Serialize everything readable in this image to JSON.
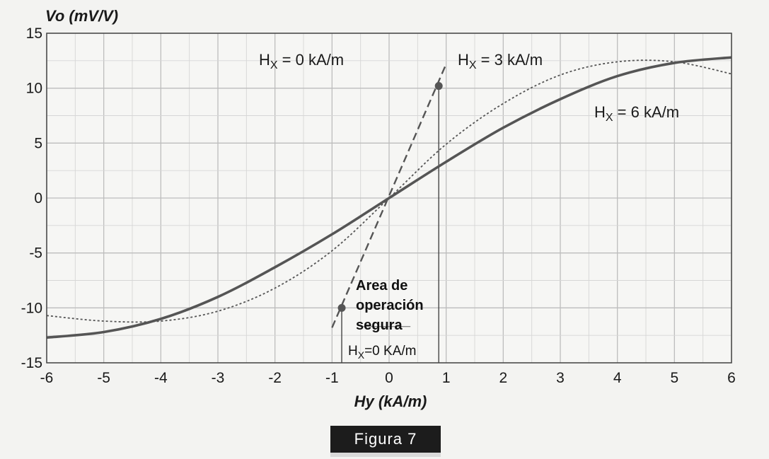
{
  "chart_data": {
    "type": "line",
    "xlabel": "Hy (kA/m)",
    "ylabel": "Vo (mV/V)",
    "xlim": [
      -6,
      6
    ],
    "ylim": [
      -15,
      15
    ],
    "x_ticks": [
      "-6",
      "-5",
      "-4",
      "-3",
      "-2",
      "-1",
      "0",
      "1",
      "2",
      "3",
      "4",
      "5",
      "6"
    ],
    "y_ticks": [
      "15",
      "10",
      "5",
      "0",
      "-5",
      "-10",
      "-15"
    ],
    "grid": true,
    "series": [
      {
        "label": "Hx = 6 kA/m",
        "style": "solid",
        "x": [
          -6,
          -5,
          -4,
          -3,
          -2,
          -1,
          0,
          1,
          2,
          3,
          4,
          5,
          6
        ],
        "y": [
          -12.7,
          -12.2,
          -11,
          -9,
          -6.3,
          -3.3,
          0,
          3.3,
          6.4,
          9,
          11.1,
          12.3,
          12.8
        ]
      },
      {
        "label": "Hx = 3 kA/m",
        "style": "dotted",
        "x": [
          -6,
          -5,
          -4,
          -3,
          -2,
          -1,
          0,
          1,
          2,
          3,
          4,
          5,
          6
        ],
        "y": [
          -10.7,
          -11.2,
          -11.2,
          -10.3,
          -8.2,
          -4.8,
          0,
          4.9,
          8.6,
          11.2,
          12.4,
          12.4,
          11.3
        ]
      },
      {
        "label": "Hx = 0 kA/m",
        "style": "dashed",
        "x": [
          -1,
          1
        ],
        "y": [
          -11.8,
          12.2
        ]
      }
    ],
    "markers": [
      {
        "x": -0.83,
        "y": -10
      },
      {
        "x": 0.87,
        "y": 10.2
      }
    ],
    "safe_area_lines_x": [
      -0.83,
      0.87
    ],
    "annotations": {
      "hx0_top": {
        "main": "H",
        "sub": "X",
        "rest": " = 0 kA/m"
      },
      "hx3": {
        "main": "H",
        "sub": "X",
        "rest": " = 3 kA/m"
      },
      "hx6": {
        "main": "H",
        "sub": "X",
        "rest": " = 6 kA/m"
      },
      "safe_area": [
        "Area de",
        "operación",
        "segura"
      ],
      "hx0_bottom": {
        "main": "H",
        "sub": "X",
        "rest": "=0 KA/m"
      }
    }
  },
  "caption": "Figura 7"
}
